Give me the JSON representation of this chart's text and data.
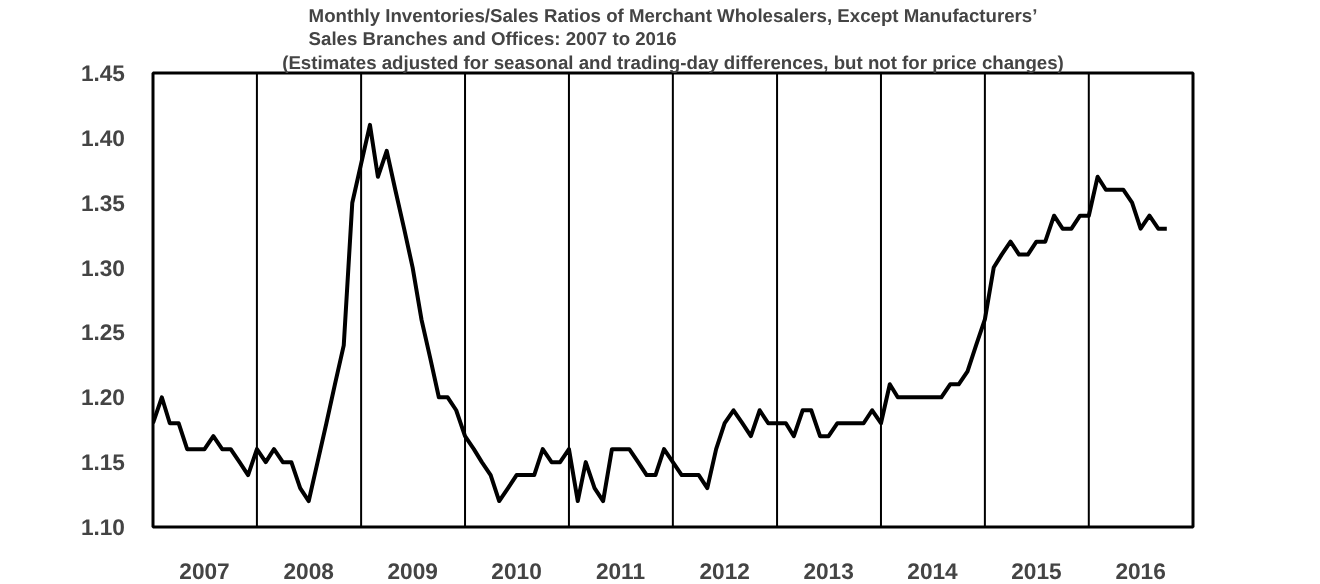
{
  "chart_data": {
    "type": "line",
    "title": "Monthly Inventories/Sales Ratios of Merchant Wholesalers, Except Manufacturers’ Sales Branches and Offices: 2007 to 2016",
    "subtitle": "(Estimates adjusted for seasonal and trading-day differences, but not for price changes)",
    "x": [
      "2007-01",
      "2007-02",
      "2007-03",
      "2007-04",
      "2007-05",
      "2007-06",
      "2007-07",
      "2007-08",
      "2007-09",
      "2007-10",
      "2007-11",
      "2007-12",
      "2008-01",
      "2008-02",
      "2008-03",
      "2008-04",
      "2008-05",
      "2008-06",
      "2008-07",
      "2008-08",
      "2008-09",
      "2008-10",
      "2008-11",
      "2008-12",
      "2009-01",
      "2009-02",
      "2009-03",
      "2009-04",
      "2009-05",
      "2009-06",
      "2009-07",
      "2009-08",
      "2009-09",
      "2009-10",
      "2009-11",
      "2009-12",
      "2010-01",
      "2010-02",
      "2010-03",
      "2010-04",
      "2010-05",
      "2010-06",
      "2010-07",
      "2010-08",
      "2010-09",
      "2010-10",
      "2010-11",
      "2010-12",
      "2011-01",
      "2011-02",
      "2011-03",
      "2011-04",
      "2011-05",
      "2011-06",
      "2011-07",
      "2011-08",
      "2011-09",
      "2011-10",
      "2011-11",
      "2011-12",
      "2012-01",
      "2012-02",
      "2012-03",
      "2012-04",
      "2012-05",
      "2012-06",
      "2012-07",
      "2012-08",
      "2012-09",
      "2012-10",
      "2012-11",
      "2012-12",
      "2013-01",
      "2013-02",
      "2013-03",
      "2013-04",
      "2013-05",
      "2013-06",
      "2013-07",
      "2013-08",
      "2013-09",
      "2013-10",
      "2013-11",
      "2013-12",
      "2014-01",
      "2014-02",
      "2014-03",
      "2014-04",
      "2014-05",
      "2014-06",
      "2014-07",
      "2014-08",
      "2014-09",
      "2014-10",
      "2014-11",
      "2014-12",
      "2015-01",
      "2015-02",
      "2015-03",
      "2015-04",
      "2015-05",
      "2015-06",
      "2015-07",
      "2015-08",
      "2015-09",
      "2015-10",
      "2015-11",
      "2015-12",
      "2016-01",
      "2016-02",
      "2016-03",
      "2016-04",
      "2016-05",
      "2016-06",
      "2016-07",
      "2016-08",
      "2016-09",
      "2016-10"
    ],
    "series": [
      {
        "color": "#000000",
        "values": [
          1.18,
          1.2,
          1.18,
          1.18,
          1.16,
          1.16,
          1.16,
          1.17,
          1.16,
          1.16,
          1.15,
          1.14,
          1.16,
          1.15,
          1.16,
          1.15,
          1.15,
          1.13,
          1.12,
          1.15,
          1.18,
          1.21,
          1.24,
          1.35,
          1.38,
          1.41,
          1.37,
          1.39,
          1.36,
          1.33,
          1.3,
          1.26,
          1.23,
          1.2,
          1.2,
          1.19,
          1.17,
          1.16,
          1.15,
          1.14,
          1.12,
          1.13,
          1.14,
          1.14,
          1.14,
          1.16,
          1.15,
          1.15,
          1.16,
          1.12,
          1.15,
          1.13,
          1.12,
          1.16,
          1.16,
          1.16,
          1.15,
          1.14,
          1.14,
          1.16,
          1.15,
          1.14,
          1.14,
          1.14,
          1.13,
          1.16,
          1.18,
          1.19,
          1.18,
          1.17,
          1.19,
          1.18,
          1.18,
          1.18,
          1.17,
          1.19,
          1.19,
          1.17,
          1.17,
          1.18,
          1.18,
          1.18,
          1.18,
          1.19,
          1.18,
          1.21,
          1.2,
          1.2,
          1.2,
          1.2,
          1.2,
          1.2,
          1.21,
          1.21,
          1.22,
          1.24,
          1.26,
          1.3,
          1.31,
          1.32,
          1.31,
          1.31,
          1.32,
          1.32,
          1.34,
          1.33,
          1.33,
          1.34,
          1.34,
          1.37,
          1.36,
          1.36,
          1.36,
          1.35,
          1.33,
          1.34,
          1.33,
          1.33
        ]
      }
    ],
    "xlim": [
      "2007-01",
      "2017-01"
    ],
    "xticks": [
      {
        "value": "2007-07",
        "label": "2007"
      },
      {
        "value": "2008-07",
        "label": "2008"
      },
      {
        "value": "2009-07",
        "label": "2009"
      },
      {
        "value": "2010-07",
        "label": "2010"
      },
      {
        "value": "2011-07",
        "label": "2011"
      },
      {
        "value": "2012-07",
        "label": "2012"
      },
      {
        "value": "2013-07",
        "label": "2013"
      },
      {
        "value": "2014-07",
        "label": "2014"
      },
      {
        "value": "2015-07",
        "label": "2015"
      },
      {
        "value": "2016-07",
        "label": "2016"
      }
    ],
    "ylim": [
      1.1,
      1.45
    ],
    "yticks": [
      {
        "value": 1.1,
        "label": "1.10"
      },
      {
        "value": 1.15,
        "label": "1.15"
      },
      {
        "value": 1.2,
        "label": "1.20"
      },
      {
        "value": 1.25,
        "label": "1.25"
      },
      {
        "value": 1.3,
        "label": "1.30"
      },
      {
        "value": 1.35,
        "label": "1.35"
      },
      {
        "value": 1.4,
        "label": "1.40"
      },
      {
        "value": 1.45,
        "label": "1.45"
      }
    ],
    "ref_lines": [
      {
        "axis": "x",
        "value": "2008-01",
        "color": "#000000"
      },
      {
        "axis": "x",
        "value": "2009-01",
        "color": "#000000"
      },
      {
        "axis": "x",
        "value": "2010-01",
        "color": "#000000"
      },
      {
        "axis": "x",
        "value": "2011-01",
        "color": "#000000"
      },
      {
        "axis": "x",
        "value": "2012-01",
        "color": "#000000"
      },
      {
        "axis": "x",
        "value": "2013-01",
        "color": "#000000"
      },
      {
        "axis": "x",
        "value": "2014-01",
        "color": "#000000"
      },
      {
        "axis": "x",
        "value": "2015-01",
        "color": "#000000"
      },
      {
        "axis": "x",
        "value": "2016-01",
        "color": "#000000"
      }
    ],
    "grid": false,
    "marker": "none",
    "line_style": "solid"
  }
}
